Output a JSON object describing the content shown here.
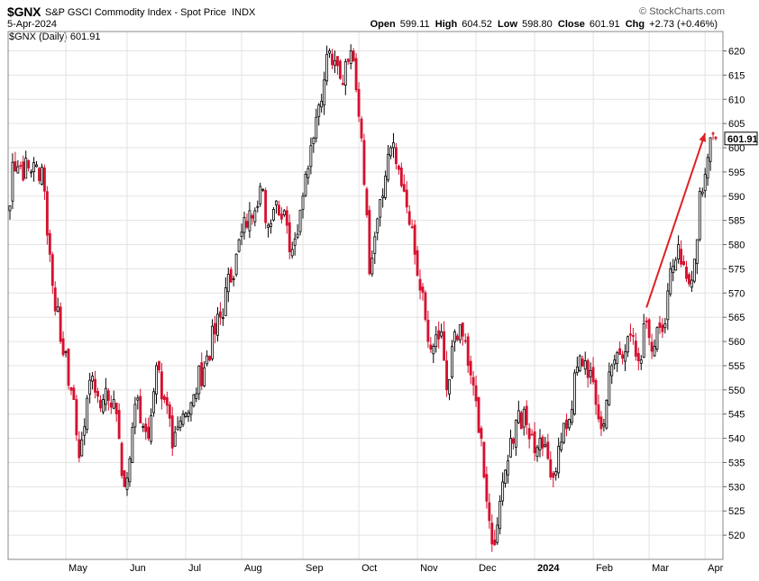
{
  "header": {
    "symbol": "$GNX",
    "index_name": "S&P GSCI Commodity Index - Spot Price",
    "exchange": "INDX",
    "brand": "© StockCharts.com",
    "date": "5-Apr-2024",
    "open_label": "Open",
    "open": "599.11",
    "high_label": "High",
    "high": "604.52",
    "low_label": "Low",
    "low": "598.80",
    "close_label": "Close",
    "close": "601.91",
    "chg_label": "Chg",
    "chg": "+2.73 (+0.46%)",
    "legend": "$GNX (Daily) 601.91"
  },
  "colors": {
    "up": "#000000",
    "down": "#d6102f",
    "arrow": "#e02020",
    "grid": "#e3e3e3"
  },
  "chart_data": {
    "type": "candlestick",
    "ylim": [
      515,
      624
    ],
    "y_ticks": [
      520,
      525,
      530,
      535,
      540,
      545,
      550,
      555,
      560,
      565,
      570,
      575,
      580,
      585,
      590,
      595,
      600,
      605,
      610,
      615,
      620
    ],
    "x_tick_labels": [
      "May",
      "Jun",
      "Jul",
      "Aug",
      "Sep",
      "Oct",
      "Nov",
      "Dec",
      "2024",
      "Feb",
      "Mar",
      "Apr"
    ],
    "x_tick_dates": [
      "2023-05-01",
      "2023-06-01",
      "2023-07-03",
      "2023-08-01",
      "2023-09-01",
      "2023-10-02",
      "2023-11-01",
      "2023-12-01",
      "2024-01-02",
      "2024-02-01",
      "2024-03-01",
      "2024-04-01"
    ],
    "last_price_label": "601.91",
    "last_price": 601.91,
    "anchors": [
      [
        "2023-03-31",
        588
      ],
      [
        "2023-04-03",
        597
      ],
      [
        "2023-04-12",
        595
      ],
      [
        "2023-04-18",
        596
      ],
      [
        "2023-04-21",
        578
      ],
      [
        "2023-04-27",
        560
      ],
      [
        "2023-05-04",
        548
      ],
      [
        "2023-05-08",
        536
      ],
      [
        "2023-05-12",
        552
      ],
      [
        "2023-05-19",
        548
      ],
      [
        "2023-05-25",
        548
      ],
      [
        "2023-05-31",
        530
      ],
      [
        "2023-06-06",
        547
      ],
      [
        "2023-06-13",
        540
      ],
      [
        "2023-06-16",
        555
      ],
      [
        "2023-06-21",
        548
      ],
      [
        "2023-06-26",
        538
      ],
      [
        "2023-06-30",
        545
      ],
      [
        "2023-07-06",
        549
      ],
      [
        "2023-07-13",
        557
      ],
      [
        "2023-07-20",
        565
      ],
      [
        "2023-07-28",
        578
      ],
      [
        "2023-08-04",
        587
      ],
      [
        "2023-08-10",
        592
      ],
      [
        "2023-08-15",
        584
      ],
      [
        "2023-08-18",
        589
      ],
      [
        "2023-08-24",
        584
      ],
      [
        "2023-08-28",
        579
      ],
      [
        "2023-09-01",
        590
      ],
      [
        "2023-09-07",
        602
      ],
      [
        "2023-09-13",
        614
      ],
      [
        "2023-09-15",
        620
      ],
      [
        "2023-09-19",
        618
      ],
      [
        "2023-09-22",
        613
      ],
      [
        "2023-09-27",
        620
      ],
      [
        "2023-10-03",
        602
      ],
      [
        "2023-10-06",
        574
      ],
      [
        "2023-10-13",
        590
      ],
      [
        "2023-10-18",
        600
      ],
      [
        "2023-10-25",
        591
      ],
      [
        "2023-10-31",
        578
      ],
      [
        "2023-11-07",
        560
      ],
      [
        "2023-11-14",
        562
      ],
      [
        "2023-11-16",
        550
      ],
      [
        "2023-11-21",
        562
      ],
      [
        "2023-11-27",
        560
      ],
      [
        "2023-11-30",
        551
      ],
      [
        "2023-12-05",
        540
      ],
      [
        "2023-12-07",
        527
      ],
      [
        "2023-12-12",
        518
      ],
      [
        "2023-12-15",
        531
      ],
      [
        "2023-12-20",
        540
      ],
      [
        "2023-12-27",
        546
      ],
      [
        "2024-01-02",
        537
      ],
      [
        "2024-01-05",
        538
      ],
      [
        "2024-01-10",
        532
      ],
      [
        "2024-01-18",
        542
      ],
      [
        "2024-01-25",
        557
      ],
      [
        "2024-01-31",
        554
      ],
      [
        "2024-02-06",
        542
      ],
      [
        "2024-02-12",
        555
      ],
      [
        "2024-02-20",
        561
      ],
      [
        "2024-02-26",
        556
      ],
      [
        "2024-02-29",
        564
      ],
      [
        "2024-03-05",
        559
      ],
      [
        "2024-03-08",
        562
      ],
      [
        "2024-03-13",
        575
      ],
      [
        "2024-03-18",
        580
      ],
      [
        "2024-03-21",
        573
      ],
      [
        "2024-03-26",
        577
      ],
      [
        "2024-03-28",
        591
      ],
      [
        "2024-04-02",
        598
      ],
      [
        "2024-04-05",
        601.91
      ]
    ],
    "annotation_arrow": {
      "from": [
        "2024-02-29",
        567
      ],
      "to": [
        "2024-04-01",
        603
      ]
    }
  }
}
